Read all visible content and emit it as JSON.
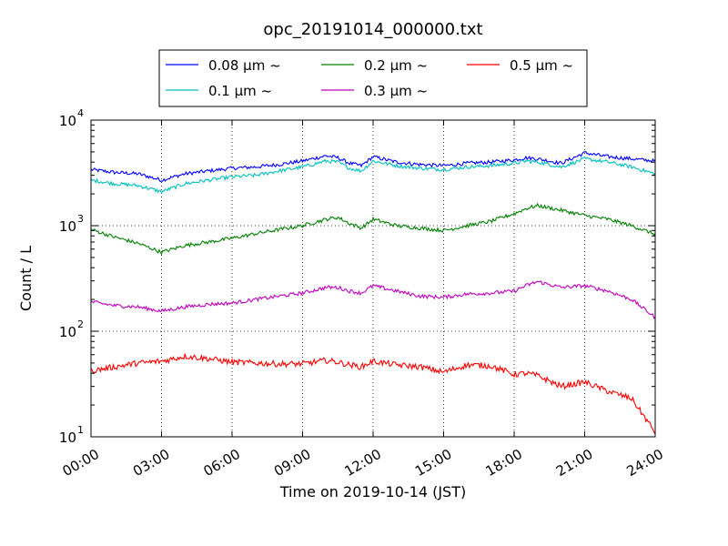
{
  "chart_data": {
    "type": "line",
    "title": "opc_20191014_000000.txt",
    "xlabel": "Time on 2019-10-14 (JST)",
    "ylabel": "Count / L",
    "yscale": "log",
    "ylim": [
      10,
      10000
    ],
    "xlim": [
      "2019-10-14 00:00",
      "2019-10-15 00:00"
    ],
    "x_tick_labels": [
      "00:00",
      "03:00",
      "06:00",
      "09:00",
      "12:00",
      "15:00",
      "18:00",
      "21:00",
      "24:00"
    ],
    "y_tick_labels": [
      {
        "base": "10",
        "exp": "1"
      },
      {
        "base": "10",
        "exp": "2"
      },
      {
        "base": "10",
        "exp": "3"
      },
      {
        "base": "10",
        "exp": "4"
      }
    ],
    "grid": true,
    "legend_position": "top-center",
    "x": [
      "00:00",
      "01:00",
      "02:00",
      "03:00",
      "04:00",
      "05:00",
      "06:00",
      "07:00",
      "08:00",
      "09:00",
      "10:00",
      "10:30",
      "11:00",
      "11:30",
      "12:00",
      "13:00",
      "14:00",
      "15:00",
      "16:00",
      "17:00",
      "18:00",
      "18:30",
      "19:00",
      "20:00",
      "21:00",
      "22:00",
      "23:00",
      "24:00"
    ],
    "series": [
      {
        "name": "0.08 μm ~",
        "color": "#0000ff",
        "values": [
          3400,
          3200,
          3100,
          2700,
          3100,
          3300,
          3500,
          3600,
          3800,
          4100,
          4600,
          4400,
          3900,
          3700,
          4500,
          4000,
          3800,
          3700,
          3900,
          4000,
          4200,
          4400,
          4300,
          3900,
          4900,
          4500,
          4300,
          4100
        ]
      },
      {
        "name": "0.1 μm ~",
        "color": "#00bfbf",
        "values": [
          2700,
          2500,
          2400,
          2100,
          2500,
          2700,
          2900,
          3000,
          3300,
          3600,
          4100,
          4000,
          3500,
          3300,
          4100,
          3700,
          3500,
          3400,
          3600,
          3700,
          3900,
          4100,
          4000,
          3600,
          4300,
          4000,
          3600,
          3100
        ]
      },
      {
        "name": "0.2 μm ~",
        "color": "#008000",
        "values": [
          920,
          780,
          680,
          560,
          650,
          700,
          760,
          840,
          920,
          1000,
          1150,
          1200,
          1050,
          950,
          1150,
          1000,
          950,
          900,
          1000,
          1100,
          1300,
          1450,
          1550,
          1400,
          1250,
          1150,
          1000,
          830
        ]
      },
      {
        "name": "0.3 μm ~",
        "color": "#bf00bf",
        "values": [
          190,
          175,
          170,
          155,
          170,
          180,
          185,
          200,
          215,
          230,
          260,
          260,
          240,
          230,
          270,
          240,
          215,
          210,
          225,
          230,
          240,
          270,
          295,
          260,
          270,
          240,
          200,
          135
        ]
      },
      {
        "name": "0.5 μm ~",
        "color": "#ff0000",
        "values": [
          42,
          46,
          50,
          52,
          58,
          55,
          51,
          50,
          49,
          49,
          53,
          51,
          48,
          46,
          52,
          48,
          46,
          41,
          48,
          47,
          39,
          40,
          38,
          30,
          33,
          27,
          23,
          11
        ]
      }
    ]
  }
}
